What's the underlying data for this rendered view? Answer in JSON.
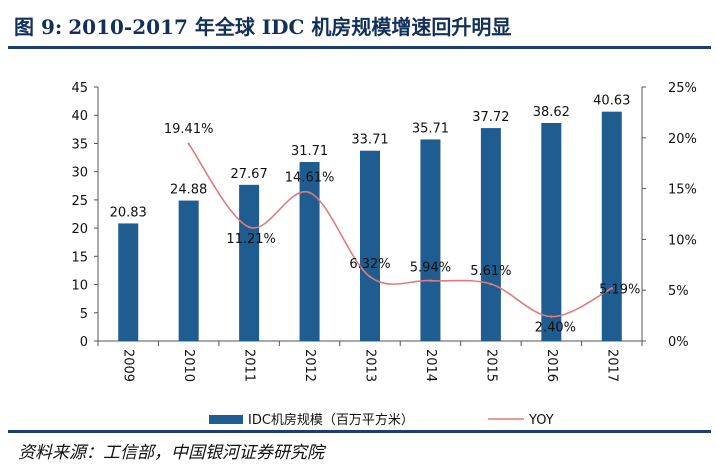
{
  "figure": {
    "label": "图 9:",
    "title": "2010-2017 年全球 IDC 机房规模增速回升明显",
    "source": "资料来源：工信部，中国银河证券研究院"
  },
  "chart_data": {
    "type": "bar",
    "categories": [
      "2009",
      "2010",
      "2011",
      "2012",
      "2013",
      "2014",
      "2015",
      "2016",
      "2017"
    ],
    "series": [
      {
        "name": "IDC机房规模（百万平方米）",
        "type": "bar",
        "axis": "left",
        "color": "#1f5c8f",
        "values": [
          20.83,
          24.88,
          27.67,
          31.71,
          33.71,
          35.71,
          37.72,
          38.62,
          40.63
        ],
        "labels": [
          "20.83",
          "24.88",
          "27.67",
          "31.71",
          "33.71",
          "35.71",
          "37.72",
          "38.62",
          "40.63"
        ]
      },
      {
        "name": "YOY",
        "type": "line",
        "axis": "right",
        "color": "#e07b7b",
        "values": [
          null,
          19.41,
          11.21,
          14.61,
          6.32,
          5.94,
          5.61,
          2.4,
          5.19
        ],
        "labels": [
          "",
          "19.41%",
          "11.21%",
          "14.61%",
          "6.32%",
          "5.94%",
          "5.61%",
          "2.40%",
          "5.19%"
        ]
      }
    ],
    "y_left": {
      "min": 0,
      "max": 45,
      "ticks": [
        "0",
        "5",
        "10",
        "15",
        "20",
        "25",
        "30",
        "35",
        "40",
        "45"
      ]
    },
    "y_right": {
      "min": 0,
      "max": 25,
      "ticks": [
        "0%",
        "5%",
        "10%",
        "15%",
        "20%",
        "25%"
      ]
    },
    "grid": false,
    "legend_position": "bottom"
  }
}
